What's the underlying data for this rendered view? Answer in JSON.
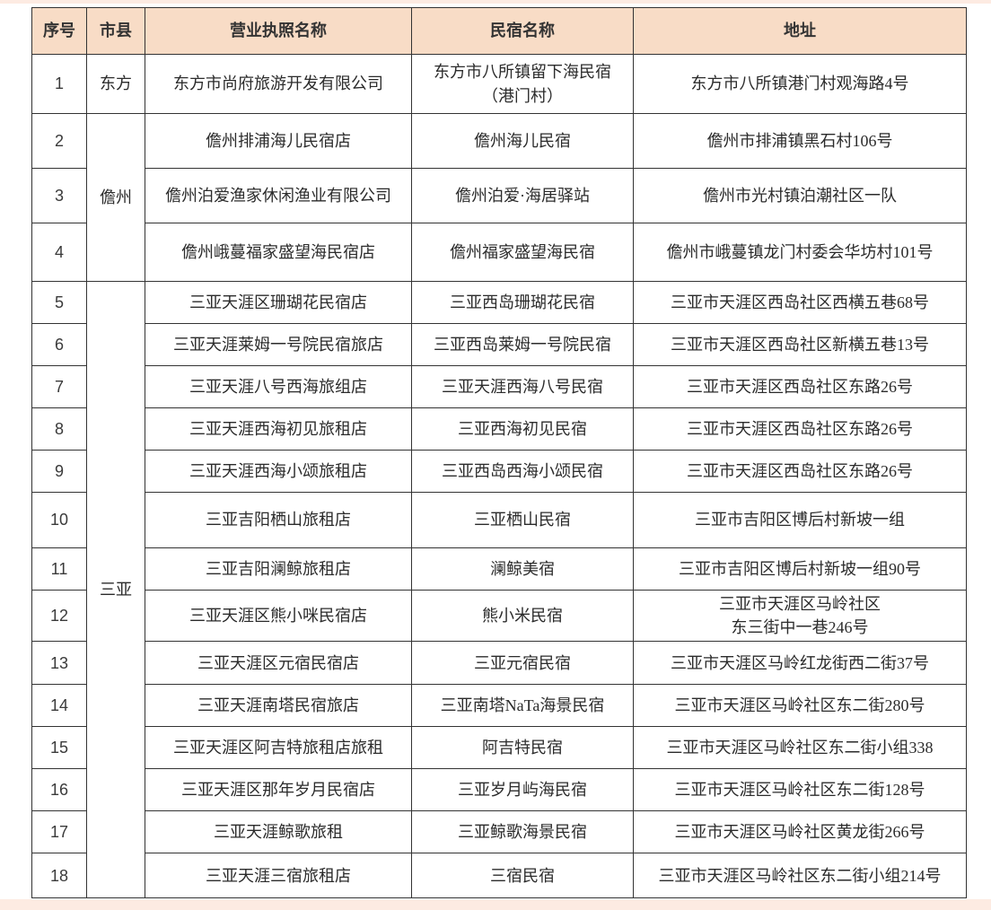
{
  "table": {
    "columns": [
      {
        "label": "序号"
      },
      {
        "label": "市县"
      },
      {
        "label": "营业执照名称"
      },
      {
        "label": "民宿名称"
      },
      {
        "label": "地址"
      }
    ],
    "county_groups": [
      {
        "label": "东方",
        "start": 1,
        "count": 1
      },
      {
        "label": "儋州",
        "start": 2,
        "count": 3
      },
      {
        "label": "三亚",
        "start": 5,
        "count": 14
      }
    ],
    "rows": [
      {
        "no": "1",
        "license": "东方市尚府旅游开发有限公司",
        "name": "东方市八所镇留下海民宿\n（港门村）",
        "address": "东方市八所镇港门村观海路4号"
      },
      {
        "no": "2",
        "license": "儋州排浦海儿民宿店",
        "name": "儋州海儿民宿",
        "address": "儋州市排浦镇黑石村106号"
      },
      {
        "no": "3",
        "license": "儋州泊爱渔家休闲渔业有限公司",
        "name": "儋州泊爱·海居驿站",
        "address": "儋州市光村镇泊潮社区一队"
      },
      {
        "no": "4",
        "license": "儋州峨蔓福家盛望海民宿店",
        "name": "儋州福家盛望海民宿",
        "address": "儋州市峨蔓镇龙门村委会华坊村101号"
      },
      {
        "no": "5",
        "license": "三亚天涯区珊瑚花民宿店",
        "name": "三亚西岛珊瑚花民宿",
        "address": "三亚市天涯区西岛社区西横五巷68号"
      },
      {
        "no": "6",
        "license": "三亚天涯莱姆一号院民宿旅店",
        "name": "三亚西岛莱姆一号院民宿",
        "address": "三亚市天涯区西岛社区新横五巷13号"
      },
      {
        "no": "7",
        "license": "三亚天涯八号西海旅组店",
        "name": "三亚天涯西海八号民宿",
        "address": "三亚市天涯区西岛社区东路26号"
      },
      {
        "no": "8",
        "license": "三亚天涯西海初见旅租店",
        "name": "三亚西海初见民宿",
        "address": "三亚市天涯区西岛社区东路26号"
      },
      {
        "no": "9",
        "license": "三亚天涯西海小颂旅租店",
        "name": "三亚西岛西海小颂民宿",
        "address": "三亚市天涯区西岛社区东路26号"
      },
      {
        "no": "10",
        "license": "三亚吉阳栖山旅租店",
        "name": "三亚栖山民宿",
        "address": "三亚市吉阳区博后村新坡一组"
      },
      {
        "no": "11",
        "license": "三亚吉阳澜鲸旅租店",
        "name": "澜鲸美宿",
        "address": "三亚市吉阳区博后村新坡一组90号"
      },
      {
        "no": "12",
        "license": "三亚天涯区熊小咪民宿店",
        "name": "熊小米民宿",
        "address": "三亚市天涯区马岭社区\n东三街中一巷246号"
      },
      {
        "no": "13",
        "license": "三亚天涯区元宿民宿店",
        "name": "三亚元宿民宿",
        "address": "三亚市天涯区马岭红龙街西二街37号"
      },
      {
        "no": "14",
        "license": "三亚天涯南塔民宿旅店",
        "name": "三亚南塔NaTa海景民宿",
        "address": "三亚市天涯区马岭社区东二街280号"
      },
      {
        "no": "15",
        "license": "三亚天涯区阿吉特旅租店旅租",
        "name": "阿吉特民宿",
        "address": "三亚市天涯区马岭社区东二街小组338"
      },
      {
        "no": "16",
        "license": "三亚天涯区那年岁月民宿店",
        "name": "三亚岁月屿海民宿",
        "address": "三亚市天涯区马岭社区东二街128号"
      },
      {
        "no": "17",
        "license": "三亚天涯鲸歌旅租",
        "name": "三亚鲸歌海景民宿",
        "address": "三亚市天涯区马岭社区黄龙街266号"
      },
      {
        "no": "18",
        "license": "三亚天涯三宿旅租店",
        "name": "三宿民宿",
        "address": "三亚市天涯区马岭社区东二街小组214号"
      }
    ]
  },
  "colors": {
    "header_bg": "#f8dcc6",
    "strip": "#fdebe2",
    "border": "#333333"
  }
}
